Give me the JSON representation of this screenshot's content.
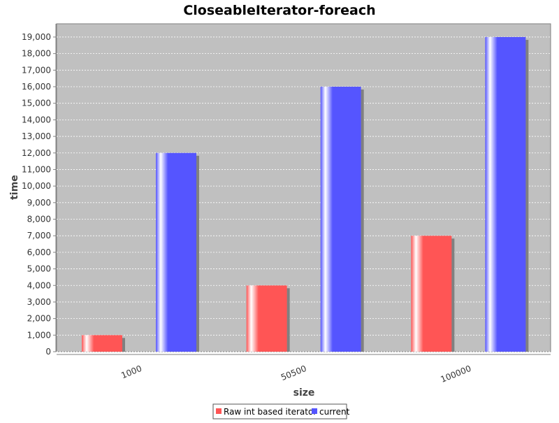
{
  "chart_data": {
    "type": "bar",
    "title": "CloseableIterator-foreach",
    "xlabel": "size",
    "ylabel": "time",
    "categories": [
      "1000",
      "50500",
      "100000"
    ],
    "series": [
      {
        "name": "Raw int based iterator",
        "color": "#ff5555",
        "values": [
          1000,
          4000,
          7000
        ]
      },
      {
        "name": "current",
        "color": "#5555ff",
        "values": [
          12000,
          16000,
          19000
        ]
      }
    ],
    "ylim": [
      0,
      19800
    ],
    "yticks": [
      0,
      1000,
      2000,
      3000,
      4000,
      5000,
      6000,
      7000,
      8000,
      9000,
      10000,
      11000,
      12000,
      13000,
      14000,
      15000,
      16000,
      17000,
      18000,
      19000
    ],
    "grid": true,
    "legend_position": "bottom",
    "plot_background": "#c0c0c0"
  }
}
